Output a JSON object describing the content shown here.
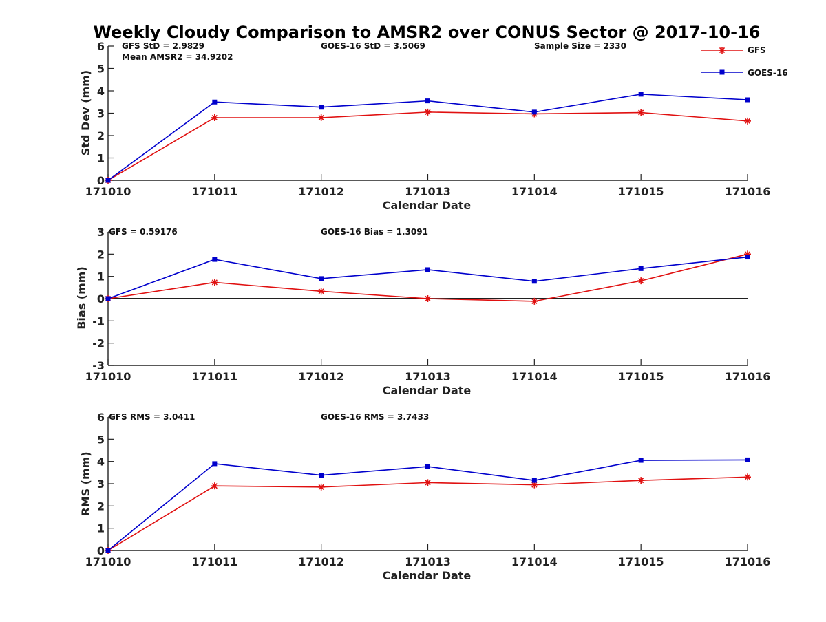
{
  "chart_data": {
    "type": "line",
    "title": "Weekly Cloudy Comparison to AMSR2 over CONUS Sector @ 2017-10-16",
    "categories": [
      "171010",
      "171011",
      "171012",
      "171013",
      "171014",
      "171015",
      "171016"
    ],
    "legend": {
      "placement": "top-right",
      "entries": [
        {
          "name": "GFS",
          "color": "#e01010",
          "marker": "asterisk"
        },
        {
          "name": "GOES-16",
          "color": "#0000cc",
          "marker": "square"
        }
      ]
    },
    "panels": [
      {
        "id": "std",
        "xlabel": "Calendar Date",
        "ylabel": "Std Dev (mm)",
        "ylim": [
          0,
          6
        ],
        "yticks": [
          "0",
          "1",
          "2",
          "3",
          "4",
          "5",
          "6"
        ],
        "zero_line": false,
        "annotations": {
          "left": "GFS StD = 2.9829",
          "left2": "Mean AMSR2 = 34.9202",
          "middle": "GOES-16 StD = 3.5069",
          "right": "Sample Size = 2330"
        },
        "series": [
          {
            "name": "GFS",
            "values": [
              0.0,
              2.8,
              2.8,
              3.05,
              2.97,
              3.03,
              2.65
            ]
          },
          {
            "name": "GOES-16",
            "values": [
              0.0,
              3.5,
              3.27,
              3.55,
              3.05,
              3.85,
              3.6
            ]
          }
        ]
      },
      {
        "id": "bias",
        "xlabel": "Calendar Date",
        "ylabel": "Bias (mm)",
        "ylim": [
          -3,
          3
        ],
        "yticks": [
          "-3",
          "-2",
          "-1",
          "0",
          "1",
          "2",
          "3"
        ],
        "zero_line": true,
        "annotations": {
          "left": "GFS = 0.59176",
          "middle": "GOES-16 Bias  = 1.3091"
        },
        "series": [
          {
            "name": "GFS",
            "values": [
              0.0,
              0.73,
              0.33,
              0.0,
              -0.12,
              0.8,
              2.0
            ]
          },
          {
            "name": "GOES-16",
            "values": [
              0.0,
              1.76,
              0.9,
              1.3,
              0.78,
              1.35,
              1.87
            ]
          }
        ]
      },
      {
        "id": "rms",
        "xlabel": "Calendar Date",
        "ylabel": "RMS (mm)",
        "ylim": [
          0,
          6
        ],
        "yticks": [
          "0",
          "1",
          "2",
          "3",
          "4",
          "5",
          "6"
        ],
        "zero_line": false,
        "annotations": {
          "left": "GFS RMS = 3.0411",
          "middle": "GOES-16 RMS = 3.7433"
        },
        "series": [
          {
            "name": "GFS",
            "values": [
              0.0,
              2.9,
              2.85,
              3.05,
              2.95,
              3.15,
              3.3
            ]
          },
          {
            "name": "GOES-16",
            "values": [
              0.0,
              3.9,
              3.38,
              3.77,
              3.15,
              4.05,
              4.07
            ]
          }
        ]
      }
    ]
  }
}
